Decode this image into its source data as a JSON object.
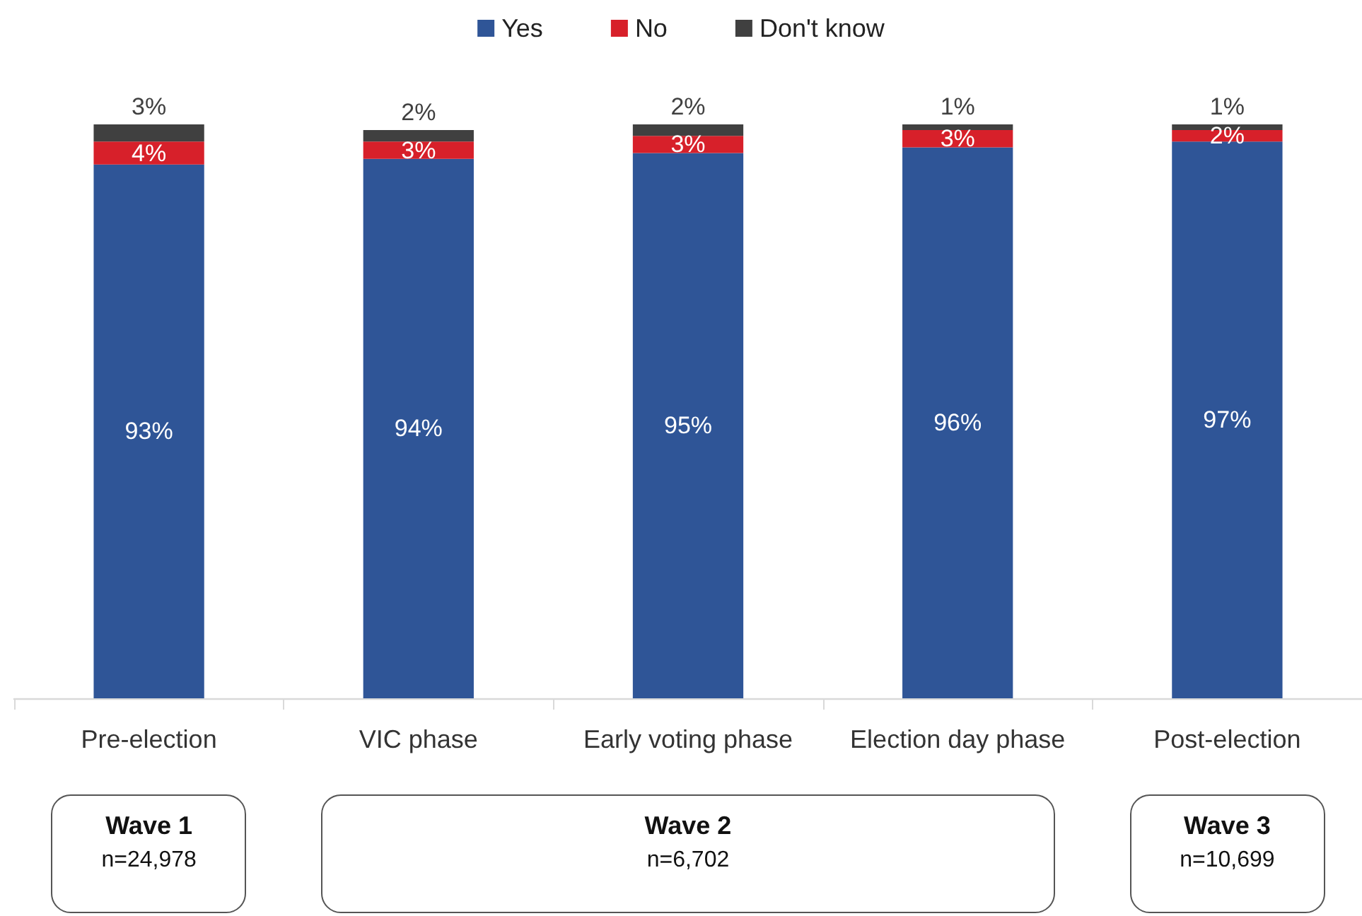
{
  "chart_data": {
    "type": "bar",
    "stacked": true,
    "categories": [
      "Pre-election",
      "VIC phase",
      "Early voting phase",
      "Election day phase",
      "Post-election"
    ],
    "series": [
      {
        "name": "Yes",
        "color": "#2f5597",
        "values": [
          93,
          94,
          95,
          96,
          97
        ],
        "value_labels": [
          "93%",
          "94%",
          "95%",
          "96%",
          "97%"
        ]
      },
      {
        "name": "No",
        "color": "#d7202a",
        "values": [
          4,
          3,
          3,
          3,
          2
        ],
        "value_labels": [
          "4%",
          "3%",
          "3%",
          "3%",
          "2%"
        ]
      },
      {
        "name": "Don't know",
        "color": "#404040",
        "values": [
          3,
          2,
          2,
          1,
          1
        ],
        "value_labels": [
          "3%",
          "2%",
          "2%",
          "1%",
          "1%"
        ]
      }
    ],
    "ylim": [
      0,
      100
    ],
    "legend": "top",
    "tick_labels": "x",
    "annotations": [
      "Wave 1",
      "n=24,978",
      "Wave 2",
      "n=6,702",
      "Wave 3",
      "n=10,699"
    ]
  }
}
